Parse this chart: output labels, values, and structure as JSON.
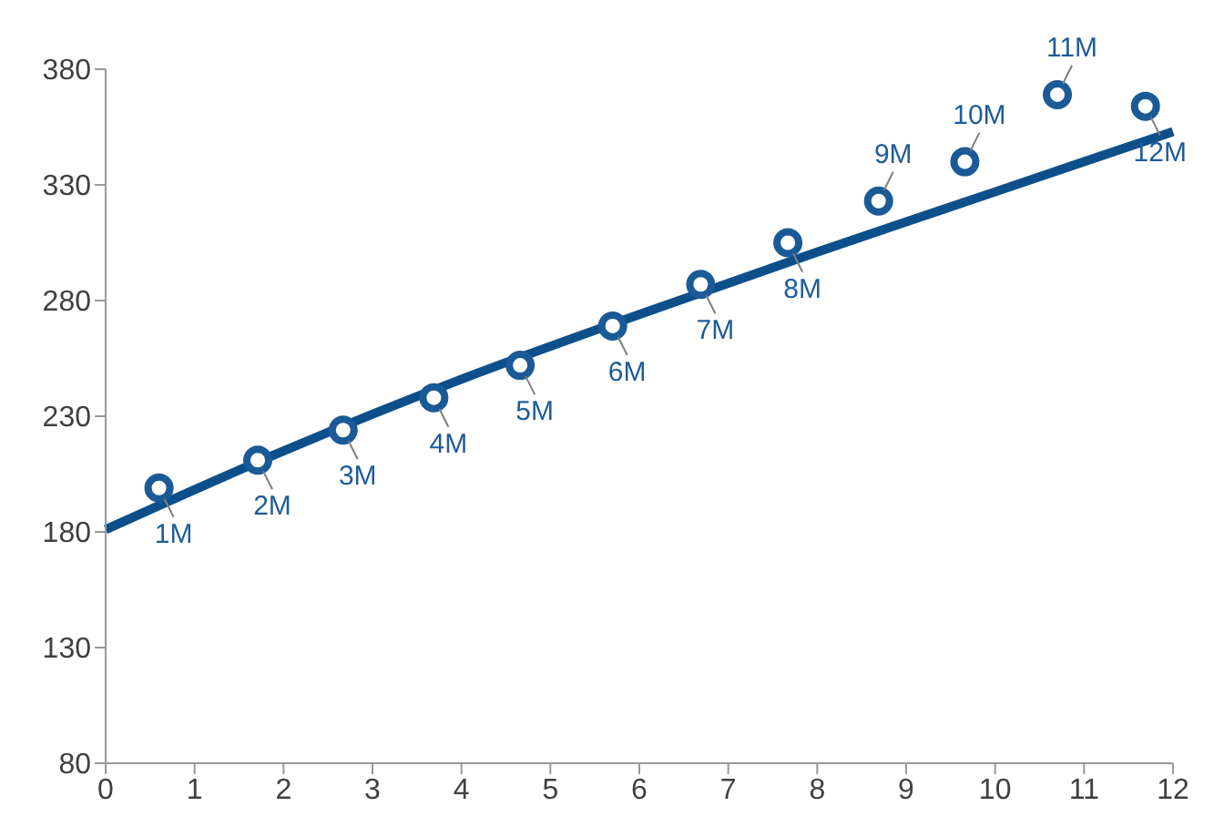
{
  "chart_data": {
    "type": "scatter",
    "x": [
      0.6,
      1.71,
      2.67,
      3.69,
      4.66,
      5.7,
      6.69,
      7.67,
      8.69,
      9.66,
      10.7,
      11.69
    ],
    "marker": "circle",
    "legend": false,
    "grid": false,
    "series": [
      {
        "color": "#1a5a96",
        "values": [
          199,
          211,
          224,
          238,
          252,
          269,
          287,
          305,
          323,
          340,
          369,
          364
        ]
      },
      {
        "type": "line",
        "color": "#0d4f8b",
        "line_style": "solid",
        "marker": "none",
        "x": [
          0,
          2,
          4,
          6,
          8,
          10,
          12
        ],
        "values": [
          181,
          215,
          246,
          274,
          301,
          327,
          353
        ]
      }
    ],
    "xlim": [
      0,
      12
    ],
    "xticks": [
      0,
      1,
      2,
      3,
      4,
      5,
      6,
      7,
      8,
      9,
      10,
      11,
      12
    ],
    "ylim": [
      80,
      380
    ],
    "yticks": [
      80,
      130,
      180,
      230,
      280,
      330,
      380
    ],
    "annotations": [
      {
        "text": "1M",
        "x": 0.6,
        "y": 199
      },
      {
        "text": "2M",
        "x": 1.71,
        "y": 211
      },
      {
        "text": "3M",
        "x": 2.67,
        "y": 224
      },
      {
        "text": "4M",
        "x": 3.69,
        "y": 238
      },
      {
        "text": "5M",
        "x": 4.66,
        "y": 252
      },
      {
        "text": "6M",
        "x": 5.7,
        "y": 269
      },
      {
        "text": "7M",
        "x": 6.69,
        "y": 287
      },
      {
        "text": "8M",
        "x": 7.67,
        "y": 305
      },
      {
        "text": "9M",
        "x": 8.69,
        "y": 323
      },
      {
        "text": "10M",
        "x": 9.66,
        "y": 340
      },
      {
        "text": "11M",
        "x": 10.7,
        "y": 369
      },
      {
        "text": "12M",
        "x": 11.69,
        "y": 364
      }
    ]
  }
}
